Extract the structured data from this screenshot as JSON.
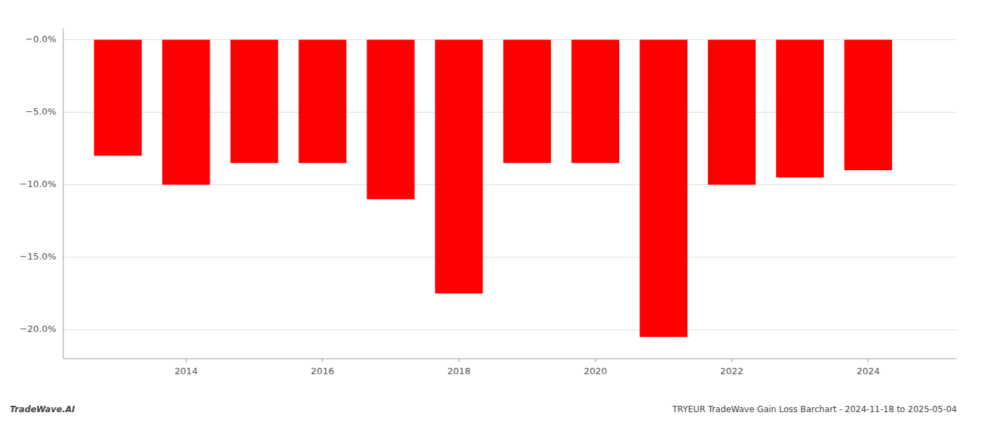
{
  "chart_data": {
    "type": "bar",
    "title": "TRYEUR TradeWave Gain Loss Barchart - 2024-11-18 to 2025-05-04",
    "annotations": [
      "TradeWave.AI"
    ],
    "x": [
      2013,
      2014,
      2015,
      2016,
      2017,
      2018,
      2019,
      2020,
      2021,
      2022,
      2023,
      2024
    ],
    "values": [
      -8.0,
      -10.0,
      -8.5,
      -8.5,
      -11.0,
      -17.5,
      -8.5,
      -8.5,
      -20.5,
      -10.0,
      -9.5,
      -9.0
    ],
    "color": "#ff0000",
    "xlim": [
      2012.2,
      2025.3
    ],
    "xticks": [
      2014,
      2016,
      2018,
      2020,
      2022,
      2024
    ],
    "ylim": [
      -22,
      0.8
    ],
    "yticks": [
      {
        "value": 0.0,
        "label": "−0.0%"
      },
      {
        "value": -5.0,
        "label": "−5.0%"
      },
      {
        "value": -10.0,
        "label": "−10.0%"
      },
      {
        "value": -15.0,
        "label": "−15.0%"
      },
      {
        "value": -20.0,
        "label": "−20.0%"
      }
    ],
    "grid": true
  }
}
